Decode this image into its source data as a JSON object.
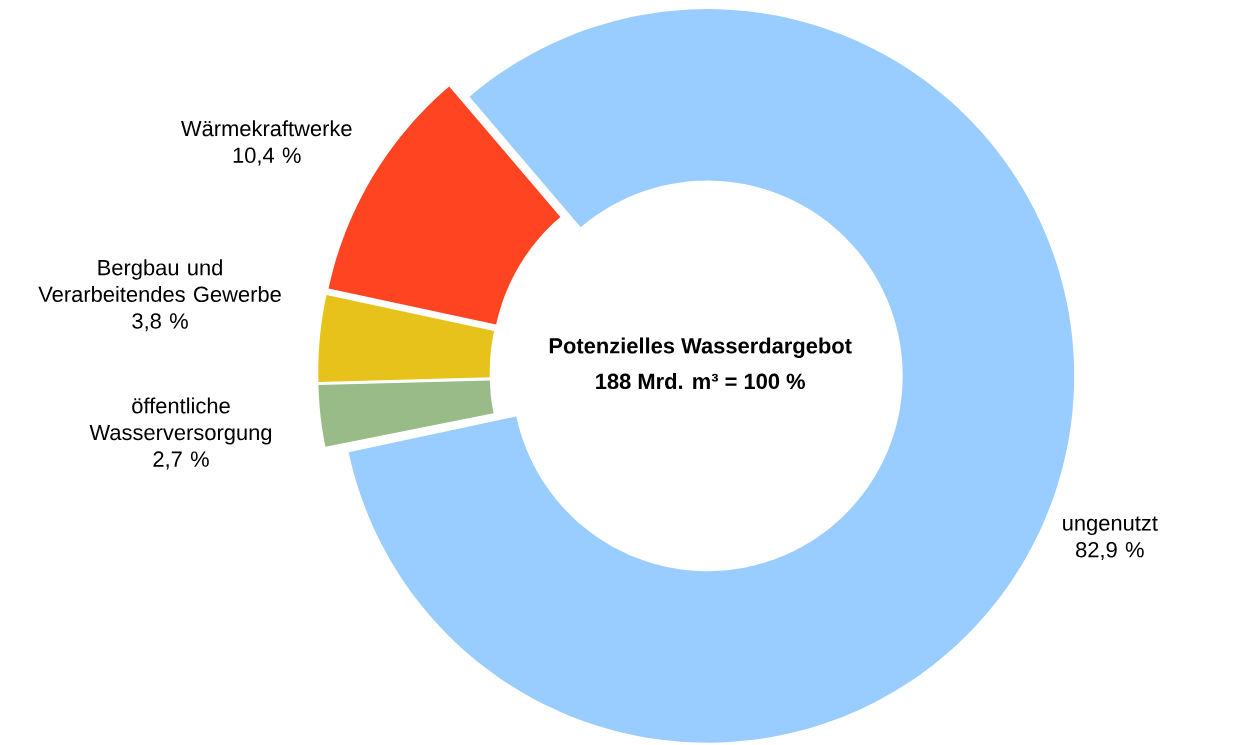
{
  "chart_data": {
    "type": "donut",
    "title": "Potenzielles Wasserdargebot",
    "subtitle": "188 Mrd. m³ = 100 %",
    "categories": [
      "ungenutzt",
      "Wärmekraftwerke",
      "Bergbau und Verarbeitendes Gewerbe",
      "öffentliche Wasserversorgung"
    ],
    "values": [
      82.9,
      10.4,
      3.8,
      2.7
    ],
    "value_labels": [
      "82,9 %",
      "10,4 %",
      "3,8 %",
      "2,7 %"
    ],
    "colors": [
      "#99ccff",
      "#ff4422",
      "#e6c21a",
      "#99bb88"
    ]
  }
}
